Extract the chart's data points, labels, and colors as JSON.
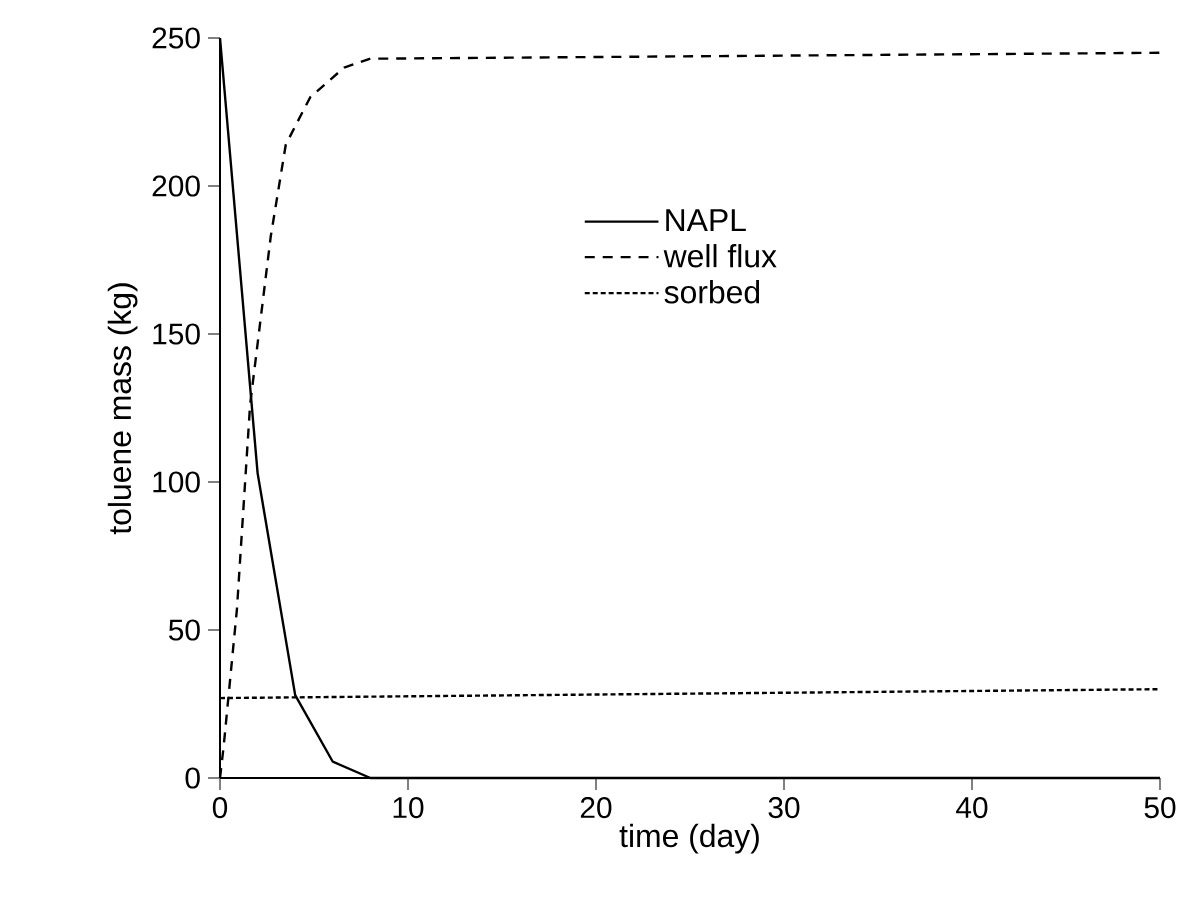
{
  "chart_data": {
    "type": "line",
    "xlabel": "time (day)",
    "ylabel": "toluene mass (kg)",
    "xlim": [
      0,
      50
    ],
    "ylim": [
      0,
      250
    ],
    "xticks": [
      0,
      10,
      20,
      30,
      40,
      50
    ],
    "yticks": [
      0,
      50,
      100,
      150,
      200,
      250
    ],
    "legend": "top right",
    "grid": false,
    "marker": "none",
    "series": [
      {
        "name": "NAPL",
        "color": "#000000",
        "line_style": "solid",
        "x": [
          0,
          2,
          4,
          6,
          8,
          50
        ],
        "values": [
          250,
          103,
          28,
          5.5,
          0,
          0
        ]
      },
      {
        "name": "well flux",
        "color": "#000000",
        "line_style": "dashed",
        "x": [
          0,
          0.2,
          0.9,
          1.6,
          2.7,
          3.5,
          4.8,
          6.6,
          8,
          50
        ],
        "values": [
          0,
          11,
          57,
          126,
          183,
          214,
          230,
          240,
          243,
          245
        ]
      },
      {
        "name": "sorbed",
        "color": "#000000",
        "line_style": "dotted",
        "x": [
          0,
          50
        ],
        "values": [
          27,
          30
        ]
      }
    ]
  }
}
